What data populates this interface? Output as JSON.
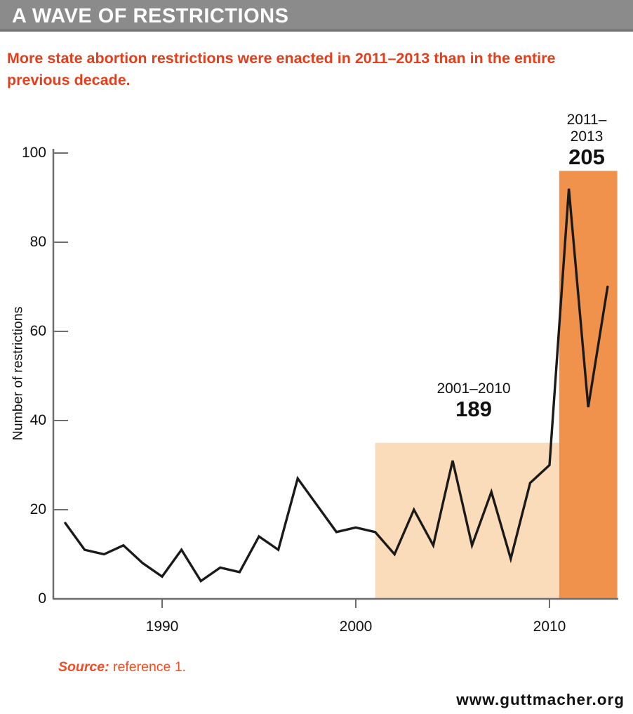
{
  "header": {
    "title": "A WAVE OF RESTRICTIONS"
  },
  "subtitle": "More state abortion restrictions were enacted in 2011–2013 than in the entire previous decade.",
  "source": {
    "label": "Source:",
    "text": " reference 1."
  },
  "footer": {
    "url": "www.guttmacher.org"
  },
  "colors": {
    "title_bar": "#8b8b8b",
    "title_bar_edge": "#6f6f6f",
    "subtitle_red": "#e63d1a",
    "source_red": "#f04c26",
    "highlight_light": "#fbdcba",
    "highlight_dark": "#f0914c",
    "line": "#1a1a1a",
    "axis": "#6d6d6d"
  },
  "chart_data": {
    "type": "line",
    "title": "A WAVE OF RESTRICTIONS",
    "xlabel": "",
    "ylabel": "Number of restrictions",
    "ylim": [
      0,
      100
    ],
    "yticks": [
      0,
      20,
      40,
      60,
      80,
      100
    ],
    "xticks": [
      1990,
      2000,
      2010
    ],
    "grid": false,
    "legend": "none",
    "x": [
      1985,
      1986,
      1987,
      1988,
      1989,
      1990,
      1991,
      1992,
      1993,
      1994,
      1995,
      1996,
      1997,
      1998,
      1999,
      2000,
      2001,
      2002,
      2003,
      2004,
      2005,
      2006,
      2007,
      2008,
      2009,
      2010,
      2011,
      2012,
      2013
    ],
    "values": [
      17,
      11,
      10,
      12,
      8,
      5,
      11,
      4,
      7,
      6,
      14,
      11,
      27,
      21,
      15,
      16,
      15,
      10,
      20,
      12,
      31,
      12,
      24,
      9,
      26,
      30,
      92,
      43,
      70
    ],
    "highlights": [
      {
        "label": "2001–2010",
        "value_label": "189",
        "total": 189,
        "year_start": 2001,
        "year_end": 2010.5,
        "top_value": 35,
        "color": "#fbdcba"
      },
      {
        "label": "2011–2013",
        "value_label": "205",
        "total": 205,
        "year_start": 2010.5,
        "year_end": 2013.5,
        "top_value": 96,
        "color": "#f0914c"
      }
    ]
  }
}
